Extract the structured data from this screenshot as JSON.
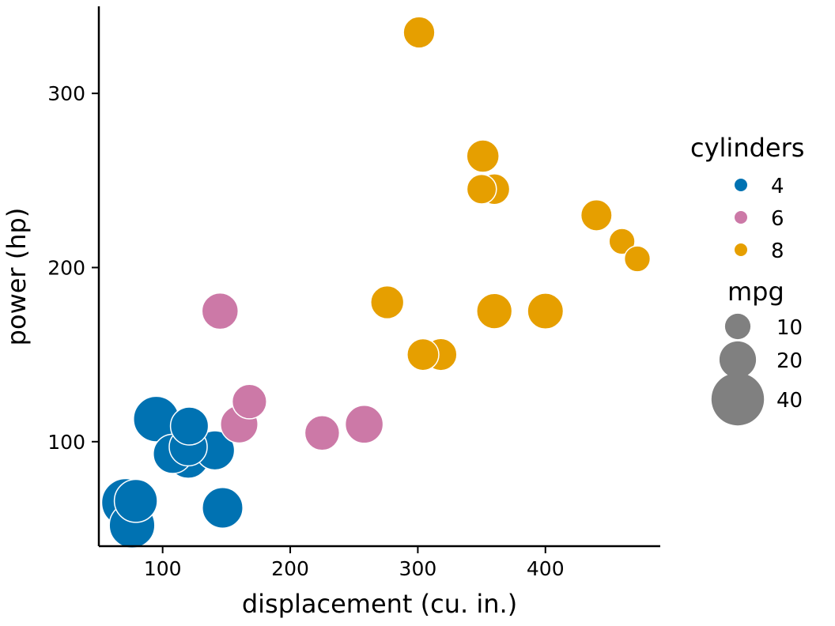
{
  "chart_data": {
    "type": "scatter",
    "xlabel": "displacement (cu. in.)",
    "ylabel": "power (hp)",
    "xlim": [
      50,
      490
    ],
    "ylim": [
      40,
      350
    ],
    "x_ticks": [
      100,
      200,
      300,
      400
    ],
    "y_ticks": [
      100,
      200,
      300
    ],
    "grid": false,
    "legend_position": "right",
    "color_legend": {
      "title": "cylinders",
      "entries": [
        {
          "label": "4",
          "color": "#0072B2"
        },
        {
          "label": "6",
          "color": "#CC79A7"
        },
        {
          "label": "8",
          "color": "#E69F00"
        }
      ]
    },
    "size_legend": {
      "title": "mpg",
      "entries": [
        {
          "label": "10",
          "value": 10
        },
        {
          "label": "20",
          "value": 20
        },
        {
          "label": "40",
          "value": 40
        }
      ]
    },
    "points": [
      {
        "x": 301,
        "y": 335,
        "cyl": "8",
        "mpg": 15
      },
      {
        "x": 351,
        "y": 264,
        "cyl": "8",
        "mpg": 15.8
      },
      {
        "x": 350,
        "y": 245,
        "cyl": "8",
        "mpg": 13.3
      },
      {
        "x": 360,
        "y": 245,
        "cyl": "8",
        "mpg": 14.3
      },
      {
        "x": 440,
        "y": 230,
        "cyl": "8",
        "mpg": 14.7
      },
      {
        "x": 460,
        "y": 215,
        "cyl": "8",
        "mpg": 10.4
      },
      {
        "x": 472,
        "y": 205,
        "cyl": "8",
        "mpg": 10.4
      },
      {
        "x": 276,
        "y": 180,
        "cyl": "8",
        "mpg": 16.4
      },
      {
        "x": 360,
        "y": 175,
        "cyl": "8",
        "mpg": 18.7
      },
      {
        "x": 400,
        "y": 175,
        "cyl": "8",
        "mpg": 19.2
      },
      {
        "x": 304,
        "y": 150,
        "cyl": "8",
        "mpg": 15.2
      },
      {
        "x": 318,
        "y": 150,
        "cyl": "8",
        "mpg": 15.5
      },
      {
        "x": 145,
        "y": 175,
        "cyl": "6",
        "mpg": 19.7
      },
      {
        "x": 168,
        "y": 123,
        "cyl": "6",
        "mpg": 17.8
      },
      {
        "x": 160,
        "y": 110,
        "cyl": "6",
        "mpg": 21
      },
      {
        "x": 225,
        "y": 105,
        "cyl": "6",
        "mpg": 18.1
      },
      {
        "x": 258,
        "y": 110,
        "cyl": "6",
        "mpg": 21.4
      },
      {
        "x": 95,
        "y": 113,
        "cyl": "4",
        "mpg": 30.4
      },
      {
        "x": 121,
        "y": 109,
        "cyl": "4",
        "mpg": 21.4
      },
      {
        "x": 120,
        "y": 97,
        "cyl": "4",
        "mpg": 21.5
      },
      {
        "x": 108,
        "y": 93,
        "cyl": "4",
        "mpg": 22.8
      },
      {
        "x": 141,
        "y": 95,
        "cyl": "4",
        "mpg": 22.8
      },
      {
        "x": 120,
        "y": 91,
        "cyl": "4",
        "mpg": 26
      },
      {
        "x": 147,
        "y": 62,
        "cyl": "4",
        "mpg": 24.4
      },
      {
        "x": 71,
        "y": 65,
        "cyl": "4",
        "mpg": 33.9
      },
      {
        "x": 79,
        "y": 66,
        "cyl": "4",
        "mpg": 27.3
      },
      {
        "x": 76,
        "y": 52,
        "cyl": "4",
        "mpg": 30.4
      }
    ]
  }
}
